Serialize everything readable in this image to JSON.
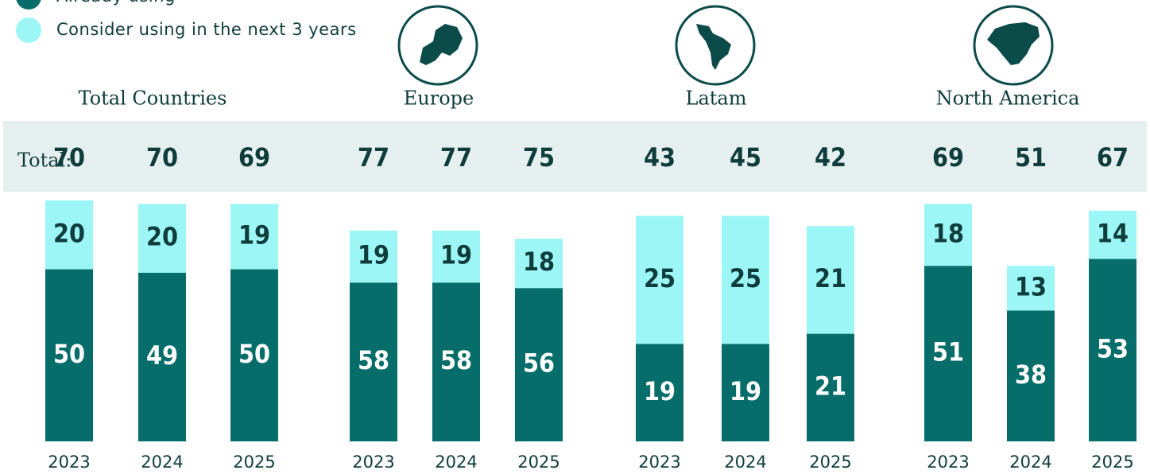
{
  "chart_data": {
    "type": "bar",
    "stacked": true,
    "total_label": "Total:",
    "series": [
      {
        "name": "Already using",
        "color": "#066d6b",
        "values": [
          [
            50,
            49,
            50
          ],
          [
            58,
            58,
            56
          ],
          [
            19,
            19,
            21
          ],
          [
            51,
            38,
            53
          ]
        ]
      },
      {
        "name": "Consider using in the next 3 years",
        "color": "#9cf6f6",
        "values": [
          [
            20,
            20,
            19
          ],
          [
            19,
            19,
            18
          ],
          [
            25,
            25,
            21
          ],
          [
            18,
            13,
            14
          ]
        ]
      }
    ],
    "groups": [
      {
        "title": "Total Countries",
        "categories": [
          "2023",
          "2024",
          "2025"
        ],
        "totals": [
          70,
          70,
          69
        ],
        "ylim": [
          0,
          70
        ]
      },
      {
        "title": "Europe",
        "categories": [
          "2023",
          "2024",
          "2025"
        ],
        "totals": [
          77,
          77,
          75
        ],
        "ylim": [
          0,
          88
        ]
      },
      {
        "title": "Latam",
        "categories": [
          "2023",
          "2024",
          "2025"
        ],
        "totals": [
          43,
          45,
          42
        ],
        "ylim": [
          0,
          47
        ]
      },
      {
        "title": "North America",
        "categories": [
          "2023",
          "2024",
          "2025"
        ],
        "totals": [
          69,
          51,
          67
        ],
        "ylim": [
          0,
          70
        ]
      }
    ]
  }
}
